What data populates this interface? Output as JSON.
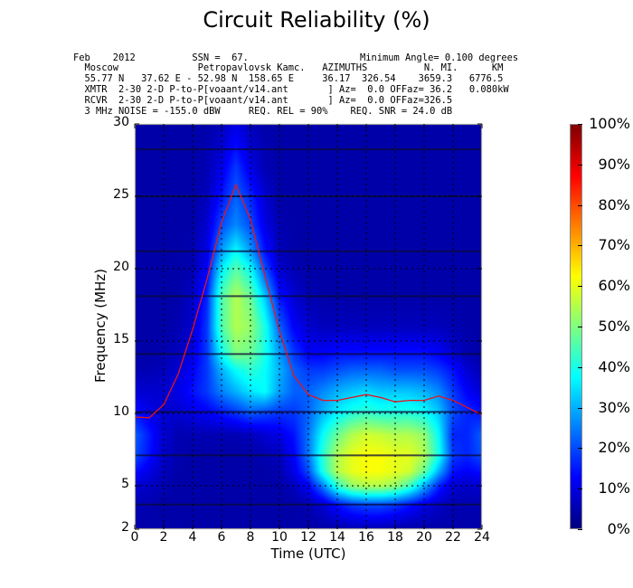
{
  "chart_data": {
    "type": "heatmap",
    "title": "Circuit Reliability (%)",
    "xlabel": "Time (UTC)",
    "ylabel": "Frequency (MHz)",
    "xlim": [
      0,
      24
    ],
    "ylim": [
      2,
      30
    ],
    "xticks": [
      "0",
      "2",
      "4",
      "6",
      "8",
      "10",
      "12",
      "14",
      "16",
      "18",
      "20",
      "22",
      "24"
    ],
    "xtick_values": [
      0,
      2,
      4,
      6,
      8,
      10,
      12,
      14,
      16,
      18,
      20,
      22,
      24
    ],
    "yticks": [
      "2",
      "5",
      "10",
      "15",
      "20",
      "25",
      "30"
    ],
    "ytick_values": [
      2,
      5,
      10,
      15,
      20,
      25,
      30
    ],
    "grid": true,
    "band_lines_mhz": [
      3.7,
      7.1,
      10.1,
      14.1,
      18.1,
      21.2,
      25.0,
      28.25
    ],
    "colorbar": {
      "range": [
        0,
        100
      ],
      "ticks": [
        "0%",
        "10%",
        "20%",
        "30%",
        "40%",
        "50%",
        "60%",
        "70%",
        "80%",
        "90%",
        "100%"
      ],
      "tick_values": [
        0,
        10,
        20,
        30,
        40,
        50,
        60,
        70,
        80,
        90,
        100
      ],
      "colormap": "jet"
    },
    "muf_line": {
      "color": "#e8141e",
      "hours": [
        0,
        1,
        2,
        3,
        4,
        5,
        6,
        7,
        8,
        9,
        10,
        11,
        12,
        13,
        14,
        15,
        16,
        17,
        18,
        19,
        20,
        21,
        22,
        23,
        24
      ],
      "mhz": [
        9.75,
        9.7,
        10.6,
        12.7,
        15.8,
        19.3,
        23.2,
        25.8,
        23.4,
        19.5,
        15.7,
        12.6,
        11.3,
        10.9,
        10.9,
        11.1,
        11.3,
        11.1,
        10.8,
        10.9,
        10.9,
        11.2,
        10.9,
        10.4,
        9.9
      ]
    },
    "reliability_grid": {
      "hours": [
        0,
        1,
        2,
        3,
        4,
        5,
        6,
        7,
        8,
        9,
        10,
        11,
        12,
        13,
        14,
        15,
        16,
        17,
        18,
        19,
        20,
        21,
        22,
        23,
        24
      ],
      "mhz": [
        2,
        3.7,
        5,
        6,
        7.1,
        8.5,
        10.1,
        11.5,
        13,
        14.1,
        16,
        18.1,
        20,
        21.2,
        23,
        25,
        27,
        28.25,
        30
      ],
      "values": [
        [
          4,
          4,
          4,
          4,
          4,
          4,
          4,
          4,
          4,
          4,
          4,
          4,
          4,
          4,
          4,
          5,
          5,
          5,
          4,
          4,
          4,
          4,
          4,
          4,
          4
        ],
        [
          5,
          5,
          4,
          4,
          4,
          4,
          4,
          4,
          4,
          4,
          4,
          4,
          5,
          8,
          14,
          18,
          20,
          20,
          18,
          14,
          10,
          7,
          5,
          5,
          5
        ],
        [
          8,
          7,
          5,
          4,
          4,
          4,
          4,
          4,
          4,
          4,
          4,
          6,
          12,
          25,
          42,
          52,
          55,
          55,
          52,
          44,
          30,
          16,
          8,
          7,
          8
        ],
        [
          14,
          10,
          6,
          4,
          4,
          4,
          4,
          4,
          4,
          4,
          5,
          10,
          20,
          40,
          55,
          60,
          62,
          62,
          60,
          58,
          48,
          30,
          14,
          12,
          14
        ],
        [
          20,
          14,
          7,
          5,
          4,
          4,
          4,
          4,
          4,
          5,
          6,
          12,
          24,
          42,
          55,
          60,
          62,
          62,
          60,
          60,
          55,
          40,
          18,
          16,
          20
        ],
        [
          22,
          15,
          8,
          5,
          5,
          5,
          5,
          5,
          6,
          8,
          10,
          14,
          24,
          38,
          48,
          55,
          58,
          57,
          55,
          55,
          52,
          38,
          16,
          16,
          22
        ],
        [
          14,
          10,
          8,
          8,
          10,
          12,
          15,
          18,
          22,
          20,
          18,
          18,
          22,
          30,
          36,
          40,
          42,
          40,
          40,
          40,
          38,
          32,
          20,
          16,
          14
        ],
        [
          8,
          8,
          8,
          10,
          14,
          18,
          25,
          30,
          35,
          38,
          28,
          22,
          22,
          26,
          30,
          32,
          34,
          32,
          32,
          32,
          30,
          26,
          18,
          12,
          8
        ],
        [
          5,
          5,
          6,
          8,
          12,
          18,
          30,
          38,
          42,
          38,
          30,
          22,
          18,
          18,
          20,
          22,
          22,
          22,
          20,
          20,
          20,
          18,
          14,
          8,
          5
        ],
        [
          4,
          4,
          5,
          6,
          10,
          18,
          38,
          50,
          48,
          40,
          28,
          18,
          12,
          12,
          14,
          14,
          14,
          14,
          14,
          14,
          14,
          12,
          8,
          5,
          4
        ],
        [
          4,
          4,
          4,
          5,
          8,
          18,
          45,
          55,
          52,
          40,
          22,
          12,
          8,
          6,
          6,
          6,
          6,
          6,
          6,
          6,
          6,
          6,
          5,
          4,
          4
        ],
        [
          4,
          4,
          4,
          4,
          7,
          16,
          45,
          55,
          48,
          32,
          14,
          8,
          5,
          4,
          4,
          4,
          4,
          4,
          4,
          4,
          4,
          4,
          4,
          4,
          4
        ],
        [
          4,
          4,
          4,
          4,
          5,
          12,
          36,
          46,
          38,
          20,
          8,
          5,
          4,
          4,
          4,
          4,
          4,
          4,
          4,
          4,
          4,
          4,
          4,
          4,
          4
        ],
        [
          4,
          4,
          4,
          4,
          5,
          10,
          28,
          38,
          28,
          14,
          6,
          4,
          4,
          4,
          4,
          4,
          4,
          4,
          4,
          4,
          4,
          4,
          4,
          4,
          4
        ],
        [
          4,
          4,
          4,
          4,
          4,
          8,
          20,
          26,
          20,
          10,
          5,
          4,
          4,
          4,
          4,
          4,
          4,
          4,
          4,
          4,
          4,
          4,
          4,
          4,
          4
        ],
        [
          4,
          4,
          4,
          4,
          4,
          6,
          14,
          22,
          16,
          8,
          4,
          4,
          4,
          4,
          4,
          4,
          4,
          4,
          4,
          4,
          4,
          4,
          4,
          4,
          4
        ],
        [
          4,
          4,
          4,
          4,
          4,
          5,
          10,
          18,
          10,
          5,
          4,
          4,
          4,
          4,
          4,
          4,
          4,
          4,
          4,
          4,
          4,
          4,
          4,
          4,
          4
        ],
        [
          4,
          4,
          4,
          4,
          4,
          5,
          8,
          14,
          8,
          5,
          4,
          4,
          4,
          4,
          4,
          4,
          4,
          4,
          4,
          4,
          4,
          4,
          4,
          4,
          4
        ],
        [
          4,
          4,
          4,
          4,
          4,
          4,
          6,
          10,
          6,
          4,
          4,
          4,
          4,
          4,
          4,
          4,
          4,
          4,
          4,
          4,
          4,
          4,
          4,
          4,
          4
        ]
      ]
    }
  },
  "header": {
    "line1_left": "Feb    2012          SSN =  67.",
    "line1_right": "Minimum Angle= 0.100 degrees",
    "line2": "  Moscow              Petropavlovsk Kamc.   AZIMUTHS          N. MI.      KM",
    "line3": "  55.77 N   37.62 E - 52.98 N  158.65 E     36.17  326.54    3659.3   6776.5",
    "line4": "  XMTR  2-30 2-D P-to-P[voaant/v14.ant       ] Az=  0.0 OFFaz= 36.2   0.080kW",
    "line5": "  RCVR  2-30 2-D P-to-P[voaant/v14.ant       ] Az=  0.0 OFFaz=326.5",
    "line6": "  3 MHz NOISE = -155.0 dBW     REQ. REL = 90%    REQ. SNR = 24.0 dB"
  }
}
